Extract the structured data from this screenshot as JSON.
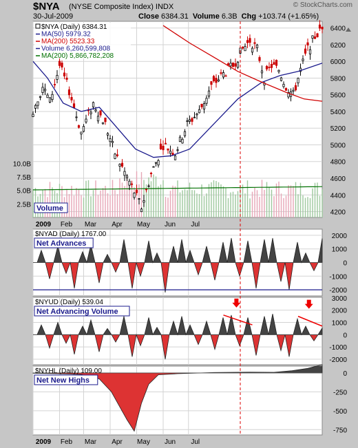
{
  "header": {
    "symbol": "$NYA",
    "exchange": "(NYSE Composite Index)  INDX",
    "date": "30-Jul-2009",
    "close_label": "Close",
    "close": "6384.31",
    "volume_label": "Volume",
    "volume": "6.3B",
    "chg_label": "Chg",
    "chg": "+103.74 (+1.65%)",
    "brand": "© StockCharts.com"
  },
  "chart_data": [
    {
      "type": "candlestick",
      "name": "price",
      "legend": [
        {
          "text": "$NYA (Daily) 6384.31",
          "color": "#000000"
        },
        {
          "text": "MA(50) 5979.32",
          "color": "#1a1a8c"
        },
        {
          "text": "MA(200) 5523.33",
          "color": "#d00000"
        },
        {
          "text": "Volume 6,260,599,808",
          "color": "#1a1a8c"
        },
        {
          "text": "MA(200) 5,866,782,208",
          "color": "#007000"
        }
      ],
      "y_ticks": [
        4200,
        4400,
        4600,
        4800,
        5000,
        5200,
        5400,
        5600,
        5800,
        6000,
        6200,
        6400
      ],
      "ylim": [
        4130,
        6480
      ],
      "volume_ticks": [
        "10.0B",
        "7.5B",
        "5.0B",
        "2.5B"
      ],
      "volume_label": "Volume",
      "x_labels": [
        "2009",
        "Feb",
        "Mar",
        "Apr",
        "May",
        "Jun",
        "Jul"
      ],
      "closes": [
        {
          "d": 0,
          "v": 5420
        },
        {
          "d": 8,
          "v": 5700
        },
        {
          "d": 14,
          "v": 5520
        },
        {
          "d": 22,
          "v": 5950
        },
        {
          "d": 30,
          "v": 5650
        },
        {
          "d": 40,
          "v": 5150
        },
        {
          "d": 50,
          "v": 5500
        },
        {
          "d": 60,
          "v": 5250
        },
        {
          "d": 68,
          "v": 4900
        },
        {
          "d": 75,
          "v": 4700
        },
        {
          "d": 82,
          "v": 4500
        },
        {
          "d": 90,
          "v": 4250
        },
        {
          "d": 98,
          "v": 4650
        },
        {
          "d": 108,
          "v": 5000
        },
        {
          "d": 118,
          "v": 4900
        },
        {
          "d": 128,
          "v": 5250
        },
        {
          "d": 138,
          "v": 5400
        },
        {
          "d": 148,
          "v": 5700
        },
        {
          "d": 158,
          "v": 5850
        },
        {
          "d": 166,
          "v": 5950
        },
        {
          "d": 174,
          "v": 6150
        },
        {
          "d": 180,
          "v": 6250
        },
        {
          "d": 186,
          "v": 6150
        },
        {
          "d": 192,
          "v": 5800
        },
        {
          "d": 198,
          "v": 5950
        },
        {
          "d": 204,
          "v": 5900
        },
        {
          "d": 210,
          "v": 5700
        },
        {
          "d": 216,
          "v": 5600
        },
        {
          "d": 222,
          "v": 5900
        },
        {
          "d": 228,
          "v": 6150
        },
        {
          "d": 234,
          "v": 6300
        },
        {
          "d": 240,
          "v": 6384
        }
      ],
      "ma50": [
        {
          "d": 0,
          "v": 6000
        },
        {
          "d": 12,
          "v": 5800
        },
        {
          "d": 25,
          "v": 5500
        },
        {
          "d": 40,
          "v": 5400
        },
        {
          "d": 55,
          "v": 5450
        },
        {
          "d": 70,
          "v": 5200
        },
        {
          "d": 85,
          "v": 4950
        },
        {
          "d": 100,
          "v": 4850
        },
        {
          "d": 115,
          "v": 4870
        },
        {
          "d": 130,
          "v": 4950
        },
        {
          "d": 150,
          "v": 5250
        },
        {
          "d": 170,
          "v": 5550
        },
        {
          "d": 190,
          "v": 5750
        },
        {
          "d": 205,
          "v": 5830
        },
        {
          "d": 220,
          "v": 5880
        },
        {
          "d": 240,
          "v": 5979
        }
      ],
      "ma200": [
        {
          "d": 108,
          "v": 6430
        },
        {
          "d": 130,
          "v": 6220
        },
        {
          "d": 150,
          "v": 6050
        },
        {
          "d": 170,
          "v": 5880
        },
        {
          "d": 190,
          "v": 5750
        },
        {
          "d": 210,
          "v": 5630
        },
        {
          "d": 225,
          "v": 5550
        },
        {
          "d": 240,
          "v": 5523
        }
      ],
      "vline_day": 172
    },
    {
      "type": "area",
      "name": "net-advances",
      "legend": "$NYAD (Daily) 1767.00",
      "label": "Net Advances",
      "y_ticks": [
        2000,
        1000,
        0,
        -1000,
        -2000
      ],
      "ylim": [
        -2450,
        2450
      ],
      "reference_line": -2000,
      "values": [
        0,
        900,
        -1200,
        1200,
        -800,
        -1900,
        800,
        1300,
        -1500,
        600,
        -700,
        1700,
        -1900,
        -1000,
        1600,
        700,
        -2200,
        1200,
        1700,
        900,
        -900,
        1200,
        -1300,
        1500,
        1800,
        -1000,
        1600,
        -1900,
        1700,
        1800,
        -1400,
        -2000,
        1500,
        700,
        -600,
        1767
      ]
    },
    {
      "type": "area",
      "name": "net-advancing-volume",
      "legend": "$NYUD (Daily) 539.04",
      "label": "Net Advancing Volume",
      "y_ticks": [
        3000,
        2000,
        1000,
        0,
        -1000,
        -2000
      ],
      "ylim": [
        -2450,
        3050
      ],
      "values": [
        0,
        800,
        -1100,
        1000,
        -700,
        -1600,
        700,
        1200,
        -1400,
        500,
        -600,
        1500,
        -1800,
        -900,
        1400,
        600,
        -2000,
        1100,
        1500,
        800,
        -800,
        1100,
        -1200,
        1400,
        1600,
        -900,
        1400,
        -1700,
        1500,
        1700,
        -1300,
        -1800,
        1300,
        700,
        -500,
        539
      ],
      "trend_lines": [
        {
          "d0": 158,
          "v0": 1600,
          "d1": 182,
          "v1": 800
        },
        {
          "d0": 220,
          "v0": 1500,
          "d1": 240,
          "v1": 700
        }
      ]
    },
    {
      "type": "area",
      "name": "net-new-highs",
      "legend": "$NYHL (Daily) 109.00",
      "label": "Net New Highs",
      "y_ticks": [
        0,
        -250,
        -500,
        -750
      ],
      "ylim": [
        -820,
        90
      ],
      "values": [
        {
          "d": 0,
          "v": -5
        },
        {
          "d": 20,
          "v": -10
        },
        {
          "d": 40,
          "v": -20
        },
        {
          "d": 55,
          "v": -80
        },
        {
          "d": 65,
          "v": -250
        },
        {
          "d": 72,
          "v": -450
        },
        {
          "d": 78,
          "v": -620
        },
        {
          "d": 84,
          "v": -770
        },
        {
          "d": 90,
          "v": -400
        },
        {
          "d": 96,
          "v": -150
        },
        {
          "d": 104,
          "v": -25
        },
        {
          "d": 120,
          "v": -10
        },
        {
          "d": 150,
          "v": 5
        },
        {
          "d": 180,
          "v": 10
        },
        {
          "d": 200,
          "v": 8
        },
        {
          "d": 215,
          "v": 30
        },
        {
          "d": 228,
          "v": 60
        },
        {
          "d": 240,
          "v": 109
        }
      ]
    }
  ],
  "x_labels_bottom": [
    "2009",
    "Feb",
    "Mar",
    "Apr",
    "May",
    "Jun",
    "Jul"
  ],
  "colors": {
    "up": "#000000",
    "down": "#cc0000",
    "ma50": "#1a1a8c",
    "ma200": "#d00000",
    "vol_ma": "#007000",
    "area_pos": "#444444",
    "area_neg": "#dd3333",
    "vol_up": "#9dc89d",
    "vol_down": "#e6a6b6",
    "grid": "#d3d3d3",
    "arrow": "#ee0000"
  }
}
